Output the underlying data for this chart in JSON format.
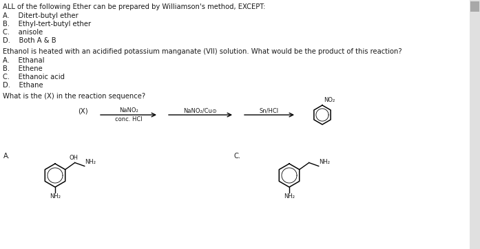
{
  "bg_color": "#ffffff",
  "text_color": "#1a1a1a",
  "q1_title": "ALL of the following Ether can be prepared by Williamson's method, EXCEPT:",
  "q1_options": [
    "A.    Ditert-butyl ether",
    "B.    Ethyl-tert-butyl ether",
    "C.    anisole",
    "D.    Both A & B"
  ],
  "q2_title": "Ethanol is heated with an acidified potassium manganate (VII) solution. What would be the product of this reaction?",
  "q2_options": [
    "A.    Ethanal",
    "B.    Ethene",
    "C.    Ethanoic acid",
    "D.    Ethane"
  ],
  "q3_title": "What is the (X) in the reaction sequence?",
  "reaction_x_label": "(X)",
  "reaction_arrow1_top": "NaNO₂",
  "reaction_arrow1_bot": "conc. HCl",
  "reaction_arrow2_top": "NaNO₂/Cu⊙",
  "reaction_arrow3_top": "Sn/HCl",
  "answer_a_label": "A.",
  "answer_c_label": "C.",
  "no2_label": "NO₂",
  "oh_label": "OH",
  "nh2_label": "NH₂",
  "scrollbar_color": "#c8c8c8",
  "scrollbar_thumb": "#a0a0a0"
}
